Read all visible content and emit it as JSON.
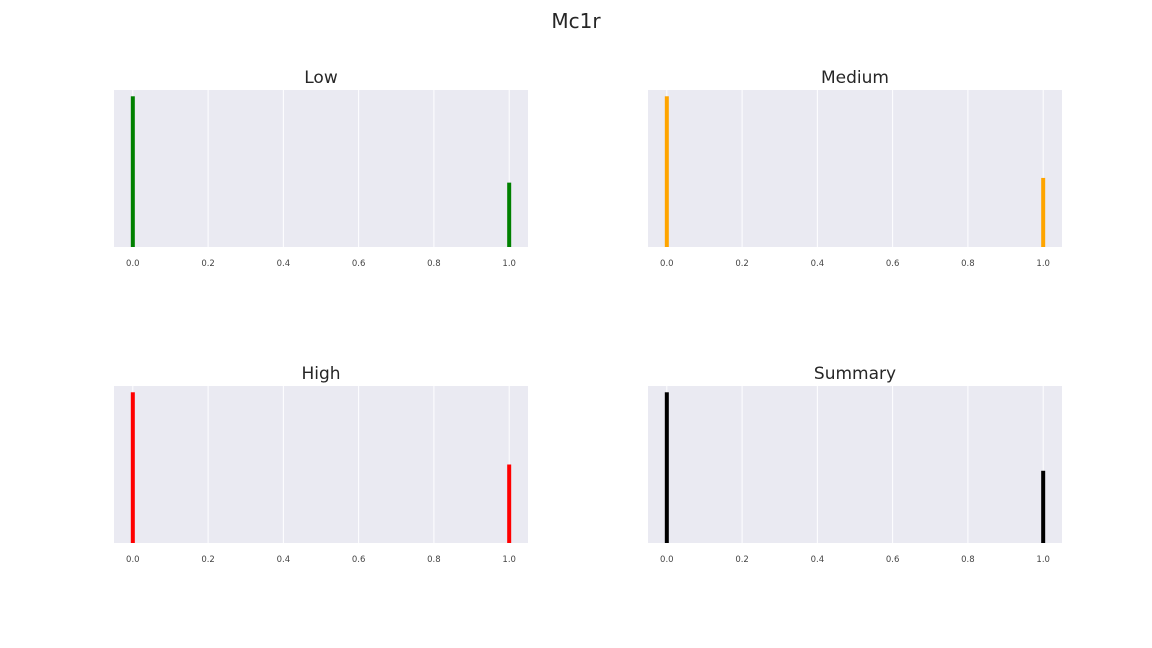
{
  "figure": {
    "title": "Mc1r"
  },
  "chart_data": [
    {
      "type": "bar",
      "title": "Low",
      "color": "#008000",
      "xlim": [
        -0.05,
        1.05
      ],
      "ylim": [
        0,
        1
      ],
      "xticks": [
        "0.0",
        "0.2",
        "0.4",
        "0.6",
        "0.8",
        "1.0"
      ],
      "bars": [
        {
          "x": 0.0,
          "value": 0.96
        },
        {
          "x": 1.0,
          "value": 0.41
        }
      ]
    },
    {
      "type": "bar",
      "title": "Medium",
      "color": "#FFA500",
      "xlim": [
        -0.05,
        1.05
      ],
      "ylim": [
        0,
        1
      ],
      "xticks": [
        "0.0",
        "0.2",
        "0.4",
        "0.6",
        "0.8",
        "1.0"
      ],
      "bars": [
        {
          "x": 0.0,
          "value": 0.96
        },
        {
          "x": 1.0,
          "value": 0.44
        }
      ]
    },
    {
      "type": "bar",
      "title": "High",
      "color": "#FF0000",
      "xlim": [
        -0.05,
        1.05
      ],
      "ylim": [
        0,
        1
      ],
      "xticks": [
        "0.0",
        "0.2",
        "0.4",
        "0.6",
        "0.8",
        "1.0"
      ],
      "bars": [
        {
          "x": 0.0,
          "value": 0.96
        },
        {
          "x": 1.0,
          "value": 0.5
        }
      ]
    },
    {
      "type": "bar",
      "title": "Summary",
      "color": "#000000",
      "xlim": [
        -0.05,
        1.05
      ],
      "ylim": [
        0,
        1
      ],
      "xticks": [
        "0.0",
        "0.2",
        "0.4",
        "0.6",
        "0.8",
        "1.0"
      ],
      "bars": [
        {
          "x": 0.0,
          "value": 0.96
        },
        {
          "x": 1.0,
          "value": 0.46
        }
      ]
    }
  ]
}
